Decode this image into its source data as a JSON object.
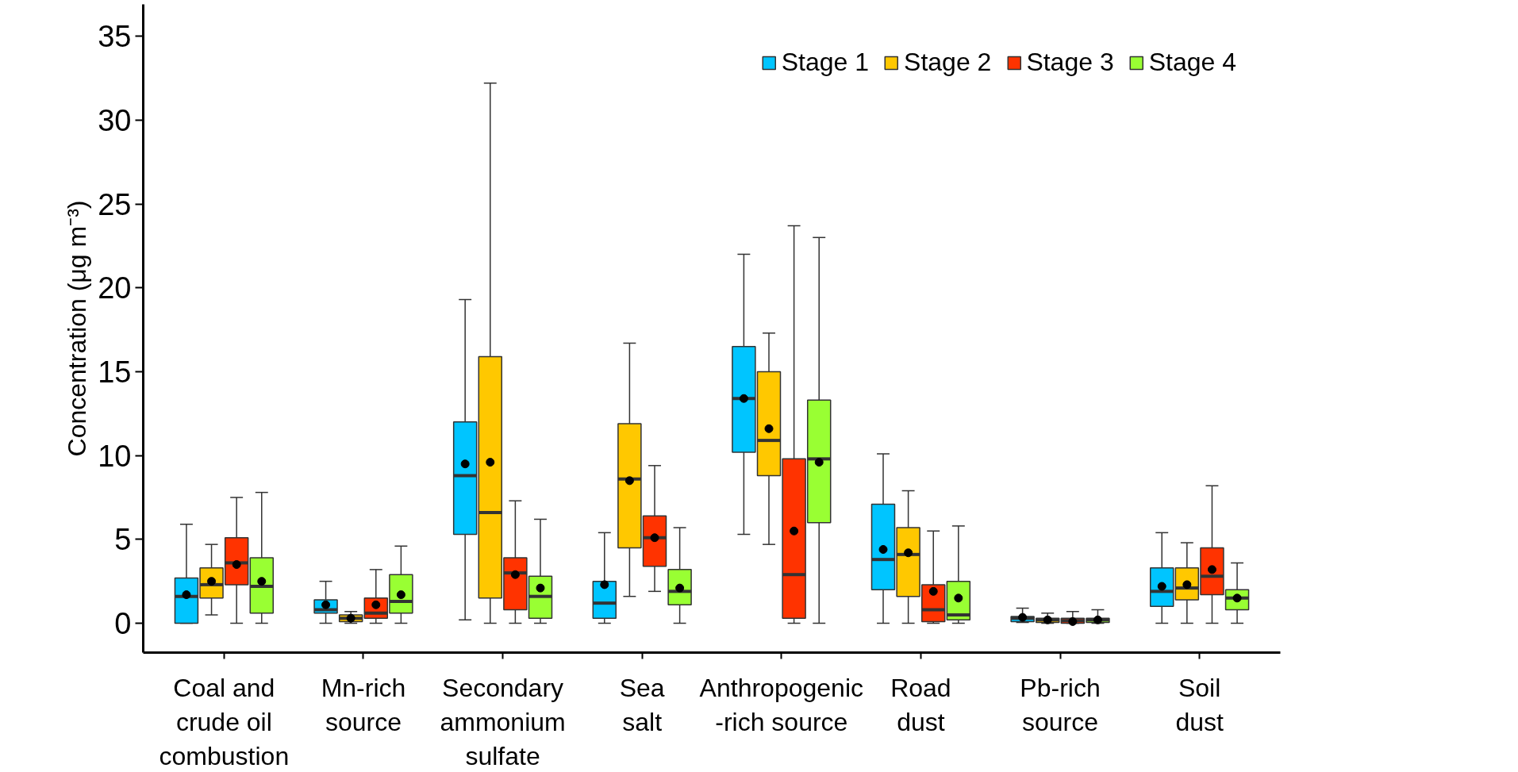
{
  "chart_data": {
    "type": "box",
    "ylabel": "Concentration (μg m⁻³)",
    "categories": [
      "Coal and\ncrude oil\ncombustion",
      "Mn-rich\nsource",
      "Secondary\nammonium\nsulfate",
      "Sea\nsalt",
      "Anthropogenic\n-rich source",
      "Road\ndust",
      "Pb-rich\nsource",
      "Soil\ndust"
    ],
    "ylim": [
      -1.75,
      36.9
    ],
    "yticks": [
      0,
      5,
      10,
      15,
      20,
      25,
      30,
      35
    ],
    "grid": false,
    "legend": "top right",
    "series": [
      {
        "name": "Stage 1",
        "color": "#00c5ff",
        "boxes": [
          {
            "low": 0,
            "q1": 0,
            "median": 1.6,
            "q3": 2.7,
            "high": 5.9,
            "mean": 1.7
          },
          {
            "low": 0,
            "q1": 0.6,
            "median": 0.8,
            "q3": 1.4,
            "high": 2.5,
            "mean": 1.1
          },
          {
            "low": 0.2,
            "q1": 5.3,
            "median": 8.8,
            "q3": 12.0,
            "high": 19.3,
            "mean": 9.5
          },
          {
            "low": 0,
            "q1": 0.3,
            "median": 1.2,
            "q3": 2.5,
            "high": 5.4,
            "mean": 2.3
          },
          {
            "low": 5.3,
            "q1": 10.2,
            "median": 13.4,
            "q3": 16.5,
            "high": 22.0,
            "mean": 13.4
          },
          {
            "low": 0,
            "q1": 2.0,
            "median": 3.8,
            "q3": 7.1,
            "high": 10.1,
            "mean": 4.4
          },
          {
            "low": 0.05,
            "q1": 0.1,
            "median": 0.3,
            "q3": 0.4,
            "high": 0.9,
            "mean": 0.35
          },
          {
            "low": 0,
            "q1": 1.0,
            "median": 1.9,
            "q3": 3.3,
            "high": 5.4,
            "mean": 2.2
          }
        ]
      },
      {
        "name": "Stage 2",
        "color": "#ffc800",
        "boxes": [
          {
            "low": 0.5,
            "q1": 1.5,
            "median": 2.3,
            "q3": 3.3,
            "high": 4.7,
            "mean": 2.5
          },
          {
            "low": 0,
            "q1": 0.1,
            "median": 0.3,
            "q3": 0.5,
            "high": 0.7,
            "mean": 0.3
          },
          {
            "low": 0,
            "q1": 1.5,
            "median": 6.6,
            "q3": 15.9,
            "high": 32.2,
            "mean": 9.6
          },
          {
            "low": 1.6,
            "q1": 4.5,
            "median": 8.6,
            "q3": 11.9,
            "high": 16.7,
            "mean": 8.5
          },
          {
            "low": 4.7,
            "q1": 8.8,
            "median": 10.9,
            "q3": 15.0,
            "high": 17.3,
            "mean": 11.6
          },
          {
            "low": 0,
            "q1": 1.6,
            "median": 4.1,
            "q3": 5.7,
            "high": 7.9,
            "mean": 4.2
          },
          {
            "low": 0,
            "q1": 0.05,
            "median": 0.2,
            "q3": 0.3,
            "high": 0.6,
            "mean": 0.2
          },
          {
            "low": 0,
            "q1": 1.4,
            "median": 2.1,
            "q3": 3.3,
            "high": 4.8,
            "mean": 2.3
          }
        ]
      },
      {
        "name": "Stage 3",
        "color": "#ff3300",
        "boxes": [
          {
            "low": 0,
            "q1": 2.3,
            "median": 3.6,
            "q3": 5.1,
            "high": 7.5,
            "mean": 3.5
          },
          {
            "low": 0,
            "q1": 0.3,
            "median": 0.6,
            "q3": 1.5,
            "high": 3.2,
            "mean": 1.1
          },
          {
            "low": 0,
            "q1": 0.8,
            "median": 3.0,
            "q3": 3.9,
            "high": 7.3,
            "mean": 2.9
          },
          {
            "low": 1.9,
            "q1": 3.4,
            "median": 5.1,
            "q3": 6.4,
            "high": 9.4,
            "mean": 5.1
          },
          {
            "low": 0,
            "q1": 0.3,
            "median": 2.9,
            "q3": 9.8,
            "high": 23.7,
            "mean": 5.5
          },
          {
            "low": 0,
            "q1": 0.1,
            "median": 0.8,
            "q3": 2.3,
            "high": 5.5,
            "mean": 1.9
          },
          {
            "low": 0,
            "q1": 0,
            "median": 0.15,
            "q3": 0.3,
            "high": 0.7,
            "mean": 0.1
          },
          {
            "low": 0,
            "q1": 1.7,
            "median": 2.8,
            "q3": 4.5,
            "high": 8.2,
            "mean": 3.2
          }
        ]
      },
      {
        "name": "Stage 4",
        "color": "#99ff33",
        "boxes": [
          {
            "low": 0,
            "q1": 0.6,
            "median": 2.2,
            "q3": 3.9,
            "high": 7.8,
            "mean": 2.5
          },
          {
            "low": 0,
            "q1": 0.6,
            "median": 1.3,
            "q3": 2.9,
            "high": 4.6,
            "mean": 1.7
          },
          {
            "low": 0,
            "q1": 0.3,
            "median": 1.6,
            "q3": 2.8,
            "high": 6.2,
            "mean": 2.1
          },
          {
            "low": 0,
            "q1": 1.1,
            "median": 1.9,
            "q3": 3.2,
            "high": 5.7,
            "mean": 2.1
          },
          {
            "low": 0,
            "q1": 6.0,
            "median": 9.8,
            "q3": 13.3,
            "high": 23.0,
            "mean": 9.6
          },
          {
            "low": 0,
            "q1": 0.2,
            "median": 0.5,
            "q3": 2.5,
            "high": 5.8,
            "mean": 1.5
          },
          {
            "low": 0,
            "q1": 0.05,
            "median": 0.2,
            "q3": 0.3,
            "high": 0.8,
            "mean": 0.2
          },
          {
            "low": 0,
            "q1": 0.8,
            "median": 1.5,
            "q3": 2.0,
            "high": 3.6,
            "mean": 1.5
          }
        ]
      }
    ]
  }
}
